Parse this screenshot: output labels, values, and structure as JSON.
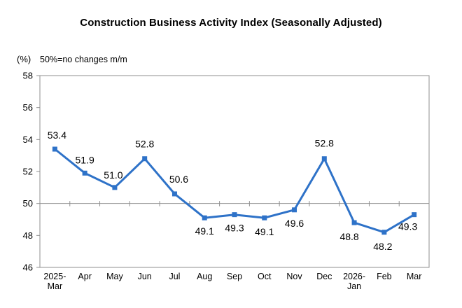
{
  "title": "Construction Business Activity Index (Seasonally Adjusted)",
  "unit_label": "(%)",
  "note": "50%=no changes m/m",
  "colors": {
    "line": "#2E72C8",
    "axis": "#8F8F8F",
    "text": "#000000",
    "background": "#FFFFFF"
  },
  "chart_data": {
    "type": "line",
    "title": "Construction Business Activity Index (Seasonally Adjusted)",
    "xlabel": "",
    "ylabel": "(%)",
    "categories": [
      "2025-\nMar",
      "Apr",
      "May",
      "Jun",
      "Jul",
      "Aug",
      "Sep",
      "Oct",
      "Nov",
      "Dec",
      "2026-\nJan",
      "Feb",
      "Mar"
    ],
    "values": [
      53.4,
      51.9,
      51.0,
      52.8,
      50.6,
      49.1,
      49.3,
      49.1,
      49.6,
      52.8,
      48.8,
      48.2,
      49.3
    ],
    "ylim": [
      46,
      58
    ],
    "yticks": [
      46,
      48,
      50,
      52,
      54,
      56,
      58
    ],
    "reference_line": 50,
    "grid": false,
    "legend": false,
    "marker": "square",
    "data_labels": true,
    "annotation": "50%=no changes m/m"
  }
}
